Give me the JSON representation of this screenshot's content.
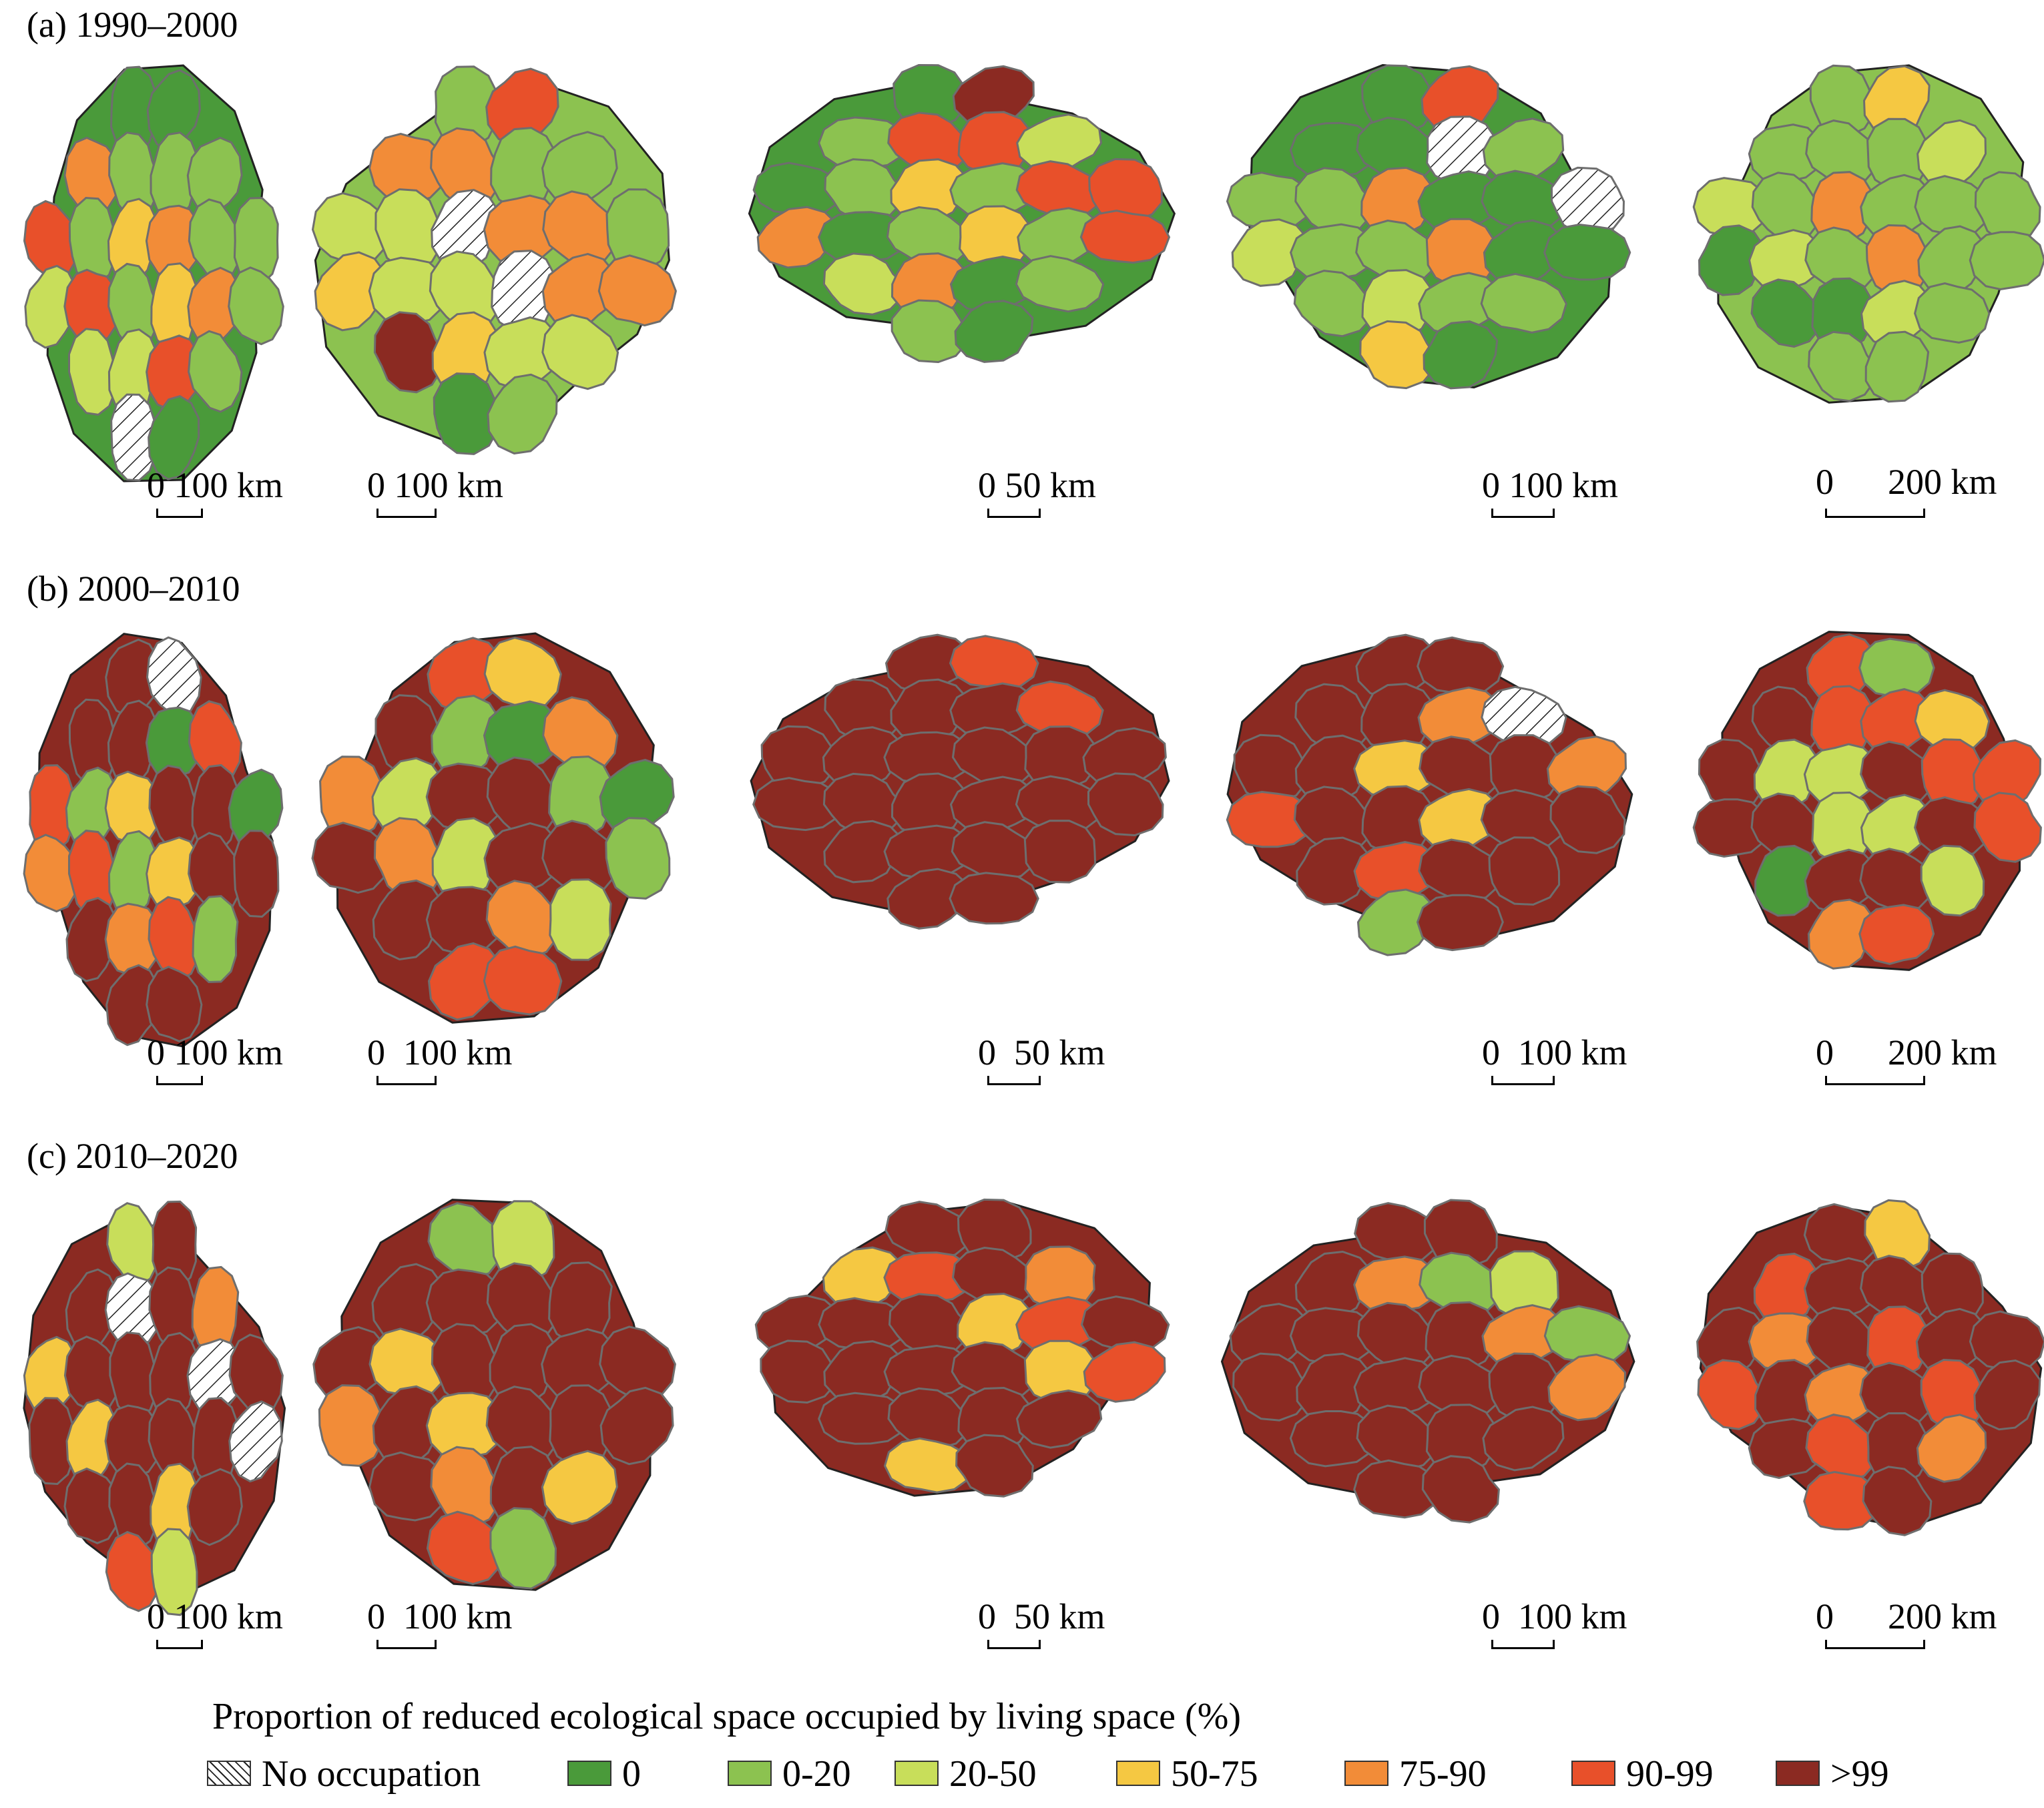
{
  "panels": [
    {
      "label": "(a) 1990–2000",
      "scales": [
        "0 100 km",
        "0 100 km",
        "0  50 km",
        "0  100 km",
        "0      200 km"
      ]
    },
    {
      "label": "(b) 2000–2010",
      "scales": [
        "0 100 km",
        "0  100 km",
        "0  50 km",
        "0  100 km",
        "0      200 km"
      ]
    },
    {
      "label": "(c) 2010–2020",
      "scales": [
        "0 100 km",
        "0  100 km",
        "0  50 km",
        "0  100 km",
        "0      200 km"
      ]
    }
  ],
  "legend": {
    "title": "Proportion of reduced ecological space occupied by living space (%)",
    "items": [
      {
        "label": "No occupation",
        "color": "#ffffff",
        "pattern": "hatch"
      },
      {
        "label": "0",
        "color": "#4a9a3a"
      },
      {
        "label": "0-20",
        "color": "#8cc250"
      },
      {
        "label": "20-50",
        "color": "#c8de5a"
      },
      {
        "label": "50-75",
        "color": "#f5c842"
      },
      {
        "label": "75-90",
        "color": "#f28c38"
      },
      {
        "label": "90-99",
        "color": "#e8502a"
      },
      {
        "label": ">99",
        "color": "#8b2a22"
      }
    ]
  },
  "region_mix": [
    [
      [
        1,
        2,
        2,
        3,
        2,
        1,
        4,
        0,
        6,
        2,
        3,
        5
      ],
      [
        2,
        3,
        2,
        4,
        5,
        6,
        0,
        1,
        3,
        2,
        7,
        5
      ],
      [
        1,
        2,
        3,
        5,
        6,
        7,
        4,
        2,
        1,
        6,
        3,
        2
      ],
      [
        1,
        2,
        2,
        3,
        1,
        6,
        5,
        4,
        2,
        0,
        2,
        1
      ],
      [
        2,
        2,
        3,
        1,
        2,
        4,
        5,
        2,
        3,
        2,
        1,
        2
      ]
    ],
    [
      [
        7,
        7,
        2,
        6,
        5,
        7,
        0,
        4,
        7,
        6,
        1,
        7
      ],
      [
        7,
        6,
        3,
        5,
        7,
        2,
        4,
        7,
        6,
        5,
        1,
        7
      ],
      [
        7,
        7,
        7,
        6,
        7,
        7,
        6,
        7,
        7,
        7,
        7,
        7
      ],
      [
        7,
        7,
        7,
        0,
        6,
        7,
        7,
        4,
        2,
        7,
        5,
        7
      ],
      [
        7,
        6,
        3,
        4,
        7,
        6,
        2,
        3,
        5,
        7,
        6,
        1
      ]
    ],
    [
      [
        7,
        7,
        3,
        7,
        5,
        7,
        0,
        7,
        7,
        6,
        4,
        7
      ],
      [
        7,
        7,
        2,
        4,
        7,
        5,
        7,
        3,
        7,
        6,
        7,
        7
      ],
      [
        7,
        4,
        7,
        7,
        5,
        7,
        6,
        7,
        7,
        4,
        7,
        7
      ],
      [
        7,
        7,
        7,
        7,
        3,
        7,
        5,
        7,
        7,
        7,
        7,
        2
      ],
      [
        7,
        6,
        7,
        5,
        7,
        6,
        7,
        4,
        7,
        6,
        7,
        7
      ]
    ]
  ]
}
